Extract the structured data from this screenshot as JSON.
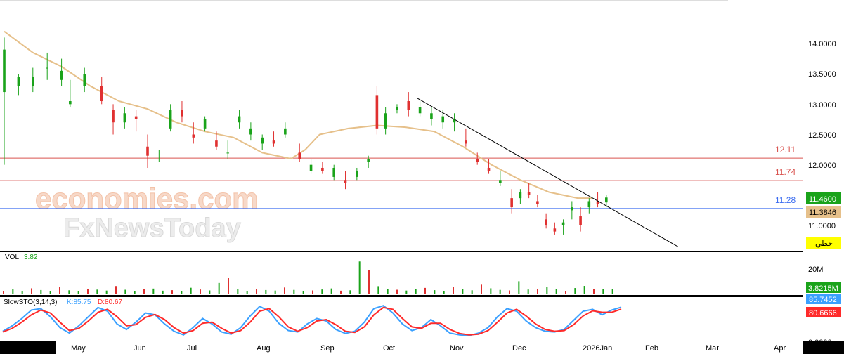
{
  "chart_data": [
    {
      "type": "candlestick",
      "panel": "price",
      "ylim": [
        10.6,
        14.6
      ],
      "y_ticks": [
        "14.0000",
        "13.5000",
        "13.0000",
        "12.5000",
        "12.0000",
        "11.0000"
      ],
      "x_ticks": [
        "May",
        "Jun",
        "Jul",
        "Aug",
        "Sep",
        "Oct",
        "Nov",
        "Dec",
        "2026Jan",
        "Feb",
        "Mar",
        "Apr"
      ],
      "last_price": "11.4600",
      "ma_value": "11.3846",
      "chart_type_badge": "خطي",
      "moving_average_close_approx": [
        [
          0,
          14.2
        ],
        [
          10,
          13.85
        ],
        [
          20,
          13.62
        ],
        [
          30,
          13.3
        ],
        [
          40,
          13.05
        ],
        [
          50,
          12.92
        ],
        [
          60,
          12.7
        ],
        [
          70,
          12.55
        ],
        [
          80,
          12.45
        ],
        [
          90,
          12.2
        ],
        [
          100,
          12.1
        ],
        [
          105,
          12.25
        ],
        [
          110,
          12.5
        ],
        [
          120,
          12.6
        ],
        [
          130,
          12.65
        ],
        [
          140,
          12.62
        ],
        [
          150,
          12.55
        ],
        [
          160,
          12.3
        ],
        [
          170,
          12.0
        ],
        [
          180,
          11.75
        ],
        [
          190,
          11.55
        ],
        [
          200,
          11.45
        ],
        [
          205,
          11.45
        ]
      ],
      "ohlc_approx": [
        [
          0,
          13.2,
          14.1,
          12.0,
          13.9
        ],
        [
          5,
          13.3,
          13.5,
          13.15,
          13.45
        ],
        [
          10,
          13.3,
          13.6,
          13.2,
          13.45
        ],
        [
          15,
          13.6,
          13.85,
          13.4,
          13.6
        ],
        [
          20,
          13.4,
          13.75,
          13.3,
          13.55
        ],
        [
          23,
          13.0,
          13.4,
          12.95,
          13.05
        ],
        [
          28,
          13.3,
          13.6,
          13.2,
          13.5
        ],
        [
          34,
          13.3,
          13.45,
          13.0,
          13.05
        ],
        [
          38,
          12.9,
          13.0,
          12.5,
          12.7
        ],
        [
          42,
          12.7,
          12.95,
          12.6,
          12.85
        ],
        [
          46,
          12.8,
          12.9,
          12.55,
          12.75
        ],
        [
          50,
          12.3,
          12.5,
          11.95,
          12.15
        ],
        [
          54,
          12.1,
          12.25,
          12.05,
          12.1
        ],
        [
          58,
          12.6,
          13.0,
          12.55,
          12.9
        ],
        [
          62,
          12.9,
          13.05,
          12.7,
          12.8
        ],
        [
          66,
          12.5,
          12.7,
          12.35,
          12.45
        ],
        [
          70,
          12.6,
          12.8,
          12.55,
          12.75
        ],
        [
          74,
          12.4,
          12.55,
          12.25,
          12.3
        ],
        [
          78,
          12.2,
          12.4,
          12.1,
          12.2
        ],
        [
          82,
          12.7,
          12.9,
          12.6,
          12.8
        ],
        [
          86,
          12.5,
          12.7,
          12.4,
          12.6
        ],
        [
          90,
          12.35,
          12.5,
          12.25,
          12.45
        ],
        [
          94,
          12.4,
          12.55,
          12.3,
          12.35
        ],
        [
          98,
          12.5,
          12.7,
          12.45,
          12.6
        ],
        [
          103,
          12.2,
          12.35,
          12.05,
          12.1
        ],
        [
          107,
          11.9,
          12.1,
          11.85,
          12.0
        ],
        [
          111,
          11.95,
          12.05,
          11.85,
          11.9
        ],
        [
          115,
          11.8,
          12.0,
          11.75,
          11.95
        ],
        [
          119,
          11.75,
          11.9,
          11.6,
          11.7
        ],
        [
          123,
          11.8,
          11.95,
          11.75,
          11.9
        ],
        [
          127,
          12.05,
          12.15,
          11.95,
          12.1
        ],
        [
          130,
          13.15,
          13.3,
          12.5,
          12.6
        ],
        [
          133,
          12.6,
          12.95,
          12.5,
          12.85
        ],
        [
          137,
          12.9,
          13.0,
          12.85,
          12.95
        ],
        [
          141,
          13.05,
          13.2,
          12.8,
          12.9
        ],
        [
          145,
          12.85,
          13.05,
          12.8,
          12.95
        ],
        [
          149,
          12.75,
          12.95,
          12.65,
          12.85
        ],
        [
          153,
          12.7,
          12.9,
          12.6,
          12.8
        ],
        [
          157,
          12.7,
          12.85,
          12.55,
          12.75
        ],
        [
          161,
          12.4,
          12.6,
          12.3,
          12.35
        ],
        [
          165,
          12.1,
          12.2,
          12.0,
          12.05
        ],
        [
          169,
          11.95,
          12.1,
          11.85,
          11.9
        ],
        [
          173,
          11.7,
          11.9,
          11.65,
          11.75
        ],
        [
          177,
          11.45,
          11.6,
          11.2,
          11.3
        ],
        [
          180,
          11.45,
          11.6,
          11.35,
          11.55
        ],
        [
          183,
          11.55,
          11.7,
          11.45,
          11.5
        ],
        [
          186,
          11.4,
          11.5,
          11.3,
          11.35
        ],
        [
          189,
          11.1,
          11.2,
          10.95,
          11.0
        ],
        [
          192,
          10.95,
          11.05,
          10.85,
          10.9
        ],
        [
          195,
          11.0,
          11.1,
          10.85,
          11.05
        ],
        [
          198,
          11.25,
          11.4,
          11.1,
          11.3
        ],
        [
          201,
          11.15,
          11.3,
          10.9,
          11.0
        ],
        [
          204,
          11.3,
          11.45,
          11.2,
          11.4
        ],
        [
          207,
          11.4,
          11.55,
          11.3,
          11.35
        ],
        [
          210,
          11.38,
          11.5,
          11.3,
          11.46
        ]
      ],
      "horizontal_levels": [
        {
          "value": 12.11,
          "label": "12.11",
          "color": "#d9534f"
        },
        {
          "value": 11.74,
          "label": "11.74",
          "color": "#d9534f"
        },
        {
          "value": 11.28,
          "label": "11.28",
          "color": "#3b6cf0"
        }
      ],
      "trendline": {
        "from": [
          144,
          13.1
        ],
        "to": [
          235,
          10.65
        ],
        "color": "#000000"
      },
      "grid": false
    },
    {
      "type": "bar",
      "panel": "volume",
      "label": "VOL",
      "value_label": "3.82",
      "y_ticks": [
        "20M"
      ],
      "last_value": "3.8215M",
      "ylim": [
        0,
        25
      ],
      "values_approx_millions": [
        2.5,
        3.8,
        2.1,
        4.5,
        3.2,
        2.6,
        5.4,
        3.0,
        2.2,
        4.1,
        3.5,
        2.8,
        6.2,
        3.4,
        2.4,
        3.9,
        4.3,
        2.7,
        3.1,
        2.5,
        4.9,
        3.6,
        2.9,
        8.5,
        12.1,
        3.7,
        2.6,
        4.0,
        3.2,
        2.8,
        5.1,
        3.3,
        2.4,
        2.9,
        3.6,
        4.4,
        2.7,
        3.0,
        24.6,
        18.2,
        6.1,
        4.2,
        3.4,
        2.8,
        3.9,
        4.8,
        3.1,
        2.6,
        5.3,
        4.1,
        3.0,
        7.2,
        4.5,
        3.3,
        2.9,
        9.8,
        3.6,
        4.2,
        5.5,
        3.8,
        2.6,
        4.7,
        6.3,
        3.9,
        4.0,
        3.82
      ]
    },
    {
      "type": "line",
      "panel": "stochastic",
      "label": "SlowSTO(3,14,3)",
      "k_label": "K:85.75",
      "d_label": "D:80.67",
      "y_ticks": [
        "0.0000"
      ],
      "last_k": "85.7452",
      "last_d": "80.6666",
      "ylim": [
        0,
        100
      ],
      "series": [
        {
          "key": "K",
          "color": "#3aa0ff",
          "values": [
            20,
            35,
            55,
            78,
            82,
            60,
            30,
            15,
            35,
            60,
            85,
            75,
            40,
            25,
            45,
            70,
            65,
            40,
            20,
            10,
            30,
            55,
            40,
            18,
            12,
            30,
            62,
            88,
            75,
            42,
            22,
            18,
            40,
            55,
            48,
            25,
            14,
            20,
            45,
            82,
            90,
            70,
            40,
            22,
            30,
            52,
            35,
            15,
            10,
            8,
            15,
            30,
            60,
            82,
            75,
            48,
            30,
            20,
            18,
            25,
            50,
            75,
            80,
            65,
            78,
            86
          ]
        },
        {
          "key": "D",
          "color": "#ff2a2a",
          "values": [
            18,
            28,
            45,
            65,
            78,
            70,
            45,
            22,
            28,
            48,
            72,
            80,
            60,
            35,
            38,
            58,
            66,
            52,
            30,
            15,
            22,
            42,
            45,
            28,
            15,
            22,
            45,
            75,
            82,
            60,
            32,
            20,
            30,
            48,
            52,
            38,
            20,
            17,
            32,
            65,
            85,
            80,
            55,
            32,
            28,
            42,
            42,
            25,
            14,
            10,
            12,
            22,
            45,
            70,
            80,
            62,
            40,
            25,
            20,
            22,
            38,
            62,
            76,
            72,
            72,
            80.67
          ]
        }
      ]
    }
  ],
  "watermark": {
    "line1": "economies.com",
    "line2": "FxNewsToday"
  },
  "colors": {
    "up_candle": "#1aa31a",
    "down_candle": "#e03030",
    "moving_average": "#e6c08a",
    "axis_bg": "#ffffff",
    "chart_bg": "#ffffff",
    "last_price_badge": "#1aa31a",
    "ma_badge": "#e6c08a",
    "type_badge": "#ffff00",
    "sto_k_badge": "#3aa0ff",
    "sto_d_badge": "#ff2a2a",
    "vol_badge": "#1aa31a"
  }
}
